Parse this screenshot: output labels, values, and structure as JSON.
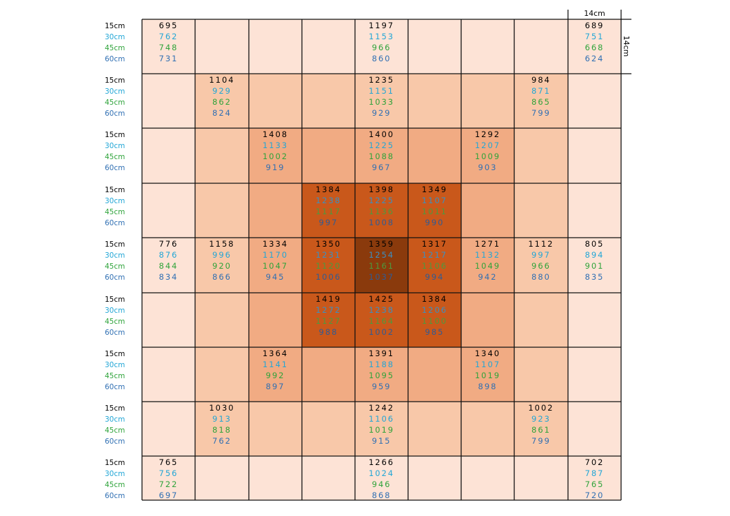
{
  "chart_data": {
    "type": "heatmap",
    "rows": 9,
    "cols": 9,
    "dimension_label_top": "14cm",
    "dimension_label_right": "14cm",
    "depth_labels": [
      "15cm",
      "30cm",
      "45cm",
      "60cm"
    ],
    "depth_colors": [
      "#000000",
      "#21a6d6",
      "#2ea33a",
      "#2f6fb3"
    ],
    "shade_colors": [
      "#fde3d6",
      "#f8c8a9",
      "#f1ab83",
      "#c9581b",
      "#8a3a0c"
    ],
    "shade_levels": [
      [
        0,
        0,
        0,
        0,
        0,
        0,
        0,
        0,
        0
      ],
      [
        0,
        1,
        1,
        1,
        1,
        1,
        1,
        1,
        0
      ],
      [
        0,
        1,
        2,
        2,
        2,
        2,
        2,
        1,
        0
      ],
      [
        0,
        1,
        2,
        3,
        3,
        3,
        2,
        1,
        0
      ],
      [
        0,
        1,
        2,
        3,
        4,
        3,
        2,
        1,
        0
      ],
      [
        0,
        1,
        2,
        3,
        3,
        3,
        2,
        1,
        0
      ],
      [
        0,
        1,
        2,
        2,
        2,
        2,
        2,
        1,
        0
      ],
      [
        0,
        1,
        1,
        1,
        1,
        1,
        1,
        1,
        0
      ],
      [
        0,
        0,
        0,
        0,
        0,
        0,
        0,
        0,
        0
      ]
    ],
    "values": [
      {
        "row": 0,
        "col": 0,
        "depths": [
          695,
          762,
          748,
          731
        ]
      },
      {
        "row": 0,
        "col": 4,
        "depths": [
          1197,
          1153,
          966,
          860
        ]
      },
      {
        "row": 0,
        "col": 8,
        "depths": [
          689,
          751,
          668,
          624
        ]
      },
      {
        "row": 1,
        "col": 1,
        "depths": [
          1104,
          929,
          862,
          824
        ]
      },
      {
        "row": 1,
        "col": 4,
        "depths": [
          1235,
          1151,
          1033,
          929
        ]
      },
      {
        "row": 1,
        "col": 7,
        "depths": [
          984,
          871,
          865,
          799
        ]
      },
      {
        "row": 2,
        "col": 2,
        "depths": [
          1408,
          1133,
          1002,
          919
        ]
      },
      {
        "row": 2,
        "col": 4,
        "depths": [
          1400,
          1225,
          1088,
          967
        ]
      },
      {
        "row": 2,
        "col": 6,
        "depths": [
          1292,
          1207,
          1009,
          903
        ]
      },
      {
        "row": 3,
        "col": 3,
        "depths": [
          1384,
          1238,
          1117,
          997
        ]
      },
      {
        "row": 3,
        "col": 4,
        "depths": [
          1398,
          1225,
          1136,
          1008
        ]
      },
      {
        "row": 3,
        "col": 5,
        "depths": [
          1349,
          1107,
          1011,
          990
        ]
      },
      {
        "row": 4,
        "col": 0,
        "depths": [
          776,
          876,
          844,
          834
        ]
      },
      {
        "row": 4,
        "col": 1,
        "depths": [
          1158,
          996,
          920,
          866
        ]
      },
      {
        "row": 4,
        "col": 2,
        "depths": [
          1334,
          1170,
          1047,
          945
        ]
      },
      {
        "row": 4,
        "col": 3,
        "depths": [
          1350,
          1231,
          1120,
          1006
        ]
      },
      {
        "row": 4,
        "col": 4,
        "depths": [
          1359,
          1254,
          1161,
          1037
        ]
      },
      {
        "row": 4,
        "col": 5,
        "depths": [
          1317,
          1217,
          1106,
          994
        ]
      },
      {
        "row": 4,
        "col": 6,
        "depths": [
          1271,
          1132,
          1049,
          942
        ]
      },
      {
        "row": 4,
        "col": 7,
        "depths": [
          1112,
          997,
          966,
          880
        ]
      },
      {
        "row": 4,
        "col": 8,
        "depths": [
          805,
          894,
          901,
          835
        ]
      },
      {
        "row": 5,
        "col": 3,
        "depths": [
          1419,
          1272,
          1127,
          988
        ]
      },
      {
        "row": 5,
        "col": 4,
        "depths": [
          1425,
          1238,
          1164,
          1002
        ]
      },
      {
        "row": 5,
        "col": 5,
        "depths": [
          1384,
          1206,
          1100,
          985
        ]
      },
      {
        "row": 6,
        "col": 2,
        "depths": [
          1364,
          1141,
          992,
          897
        ]
      },
      {
        "row": 6,
        "col": 4,
        "depths": [
          1391,
          1188,
          1095,
          959
        ]
      },
      {
        "row": 6,
        "col": 6,
        "depths": [
          1340,
          1107,
          1019,
          898
        ]
      },
      {
        "row": 7,
        "col": 1,
        "depths": [
          1030,
          913,
          818,
          762
        ]
      },
      {
        "row": 7,
        "col": 4,
        "depths": [
          1242,
          1106,
          1019,
          915
        ]
      },
      {
        "row": 7,
        "col": 7,
        "depths": [
          1002,
          923,
          861,
          799
        ]
      },
      {
        "row": 8,
        "col": 0,
        "depths": [
          765,
          756,
          722,
          697
        ]
      },
      {
        "row": 8,
        "col": 4,
        "depths": [
          1266,
          1024,
          946,
          868
        ]
      },
      {
        "row": 8,
        "col": 8,
        "depths": [
          702,
          787,
          765,
          720
        ]
      }
    ]
  }
}
